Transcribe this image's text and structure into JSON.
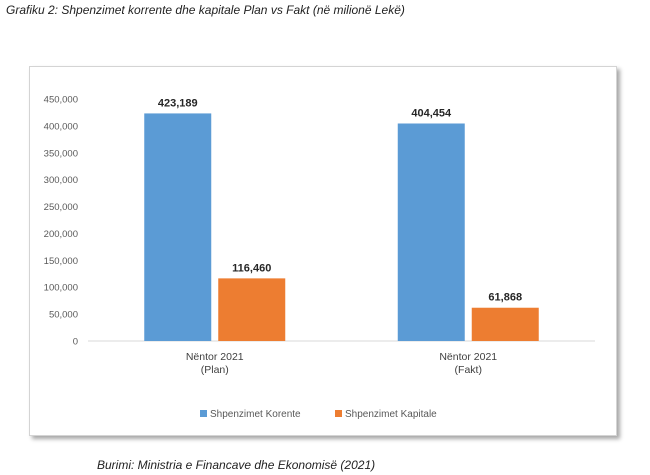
{
  "caption": "Grafiku 2: Shpenzimet korrente dhe kapitale Plan vs Fakt (në milionë Lekë)",
  "source": "Burimi: Ministria e Financave dhe Ekonomisë (2021)",
  "chart_data": {
    "type": "bar",
    "title": "",
    "xlabel": "",
    "ylabel": "",
    "categories": [
      {
        "line1": "Nëntor 2021",
        "line2": "(Plan)"
      },
      {
        "line1": "Nëntor 2021",
        "line2": "(Fakt)"
      }
    ],
    "series": [
      {
        "name": "Shpenzimet Korente",
        "color": "#5b9bd5",
        "values": [
          423189,
          404454
        ],
        "labels": [
          "423,189",
          "404,454"
        ]
      },
      {
        "name": "Shpenzimet Kapitale",
        "color": "#ed7d31",
        "values": [
          116460,
          61868
        ],
        "labels": [
          "116,460",
          "61,868"
        ]
      }
    ],
    "ylim": [
      0,
      450000
    ],
    "yticks": [
      "0",
      "50,000",
      "100,000",
      "150,000",
      "200,000",
      "250,000",
      "300,000",
      "350,000",
      "400,000",
      "450,000"
    ],
    "grid": false,
    "legend_position": "bottom"
  }
}
